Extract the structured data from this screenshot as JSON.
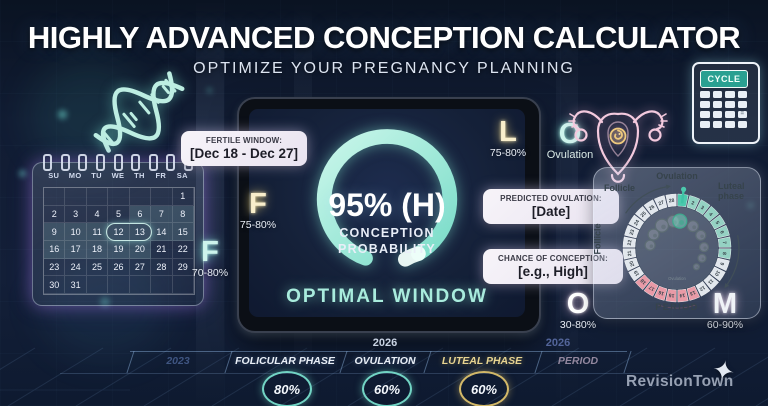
{
  "header": {
    "title": "HIGHLY ADVANCED CONCEPTION CALCULATOR",
    "subtitle": "OPTIMIZE YOUR PREGNANCY PLANNING"
  },
  "brand": {
    "name": "RevisionTown"
  },
  "colors": {
    "background": "#101b30",
    "accent_teal": "#8fe3d4",
    "accent_gold": "#f3e4b4",
    "accent_pink": "#f2c2dc",
    "period_red": "#ef8a9a",
    "callout_bg": "#f3eff6"
  },
  "calendar": {
    "day_headers": [
      "SU",
      "MO",
      "TU",
      "WE",
      "TH",
      "FR",
      "SA"
    ],
    "weeks": [
      [
        "",
        "",
        "",
        "",
        "",
        "",
        "1"
      ],
      [
        "2",
        "3",
        "4",
        "5",
        "6",
        "7",
        "8"
      ],
      [
        "9",
        "10",
        "11",
        "12",
        "13",
        "14",
        "15"
      ],
      [
        "16",
        "17",
        "18",
        "19",
        "20",
        "21",
        "22"
      ],
      [
        "23",
        "24",
        "25",
        "26",
        "27",
        "28",
        "29"
      ],
      [
        "30",
        "31",
        "",
        "",
        "",
        "",
        ""
      ]
    ],
    "highlight_days": [
      "6",
      "7",
      "8",
      "9",
      "10",
      "11",
      "12",
      "13",
      "14",
      "15",
      "16",
      "17",
      "18",
      "19",
      "20"
    ],
    "circled_days": [
      "12",
      "13"
    ]
  },
  "tablet": {
    "gauge_value": "95% (H)",
    "gauge_label_1": "CONCEPTION",
    "gauge_label_2": "PROBABILITY",
    "status": "OPTIMAL WINDOW"
  },
  "callouts": {
    "fertile_window": {
      "label": "FERTILE WINDOW:",
      "value": "[Dec 18 - Dec 27]"
    },
    "predicted_ovulation": {
      "label": "PREDICTED OVULATION:",
      "value": "[Date]"
    },
    "chance_of_conception": {
      "label": "CHANCE OF CONCEPTION:",
      "value": "[e.g., High]"
    }
  },
  "markers": {
    "follicular_left": {
      "letter": "F",
      "range": "70-80%"
    },
    "follicular_mid": {
      "letter": "F",
      "range": "75-80%"
    },
    "luteal_top": {
      "letter": "L",
      "range": "75-80%"
    },
    "ovulation_top": {
      "letter": "O",
      "label": "Ovulation"
    },
    "ovulation_bottom": {
      "letter": "O",
      "range": "30-80%"
    },
    "menstrual_right": {
      "letter": "M",
      "range": "60-90%"
    }
  },
  "calculator_icon": {
    "display": "CYCLE",
    "equals_key": "="
  },
  "cycle_wheel": {
    "total_days": 28,
    "teal_days": [
      1,
      2,
      3,
      4,
      5,
      6,
      7,
      8
    ],
    "pink_days": [
      13,
      14,
      15,
      16,
      17,
      18
    ],
    "marker_day": 1,
    "labels": {
      "top": "Ovulation",
      "top_left": "Follicle",
      "top_right": "Luteal phase",
      "left": "Follicle",
      "bottom": "PERIOD",
      "center": "Ovulation"
    }
  },
  "timeline": {
    "years": [
      {
        "label": "2026",
        "position": "ovulation",
        "dim": false
      },
      {
        "label": "2026",
        "position": "period",
        "dim": true
      }
    ],
    "segments": [
      {
        "label": "2023",
        "type": "year"
      },
      {
        "label": "FOLICULAR PHASE",
        "percent": "80%",
        "ring": "teal"
      },
      {
        "label": "OVULATION",
        "percent": "60%",
        "ring": "teal"
      },
      {
        "label": "LUTEAL PHASE",
        "percent": "60%",
        "ring": "gold"
      },
      {
        "label": "PERIOD",
        "type": "dim"
      }
    ]
  }
}
